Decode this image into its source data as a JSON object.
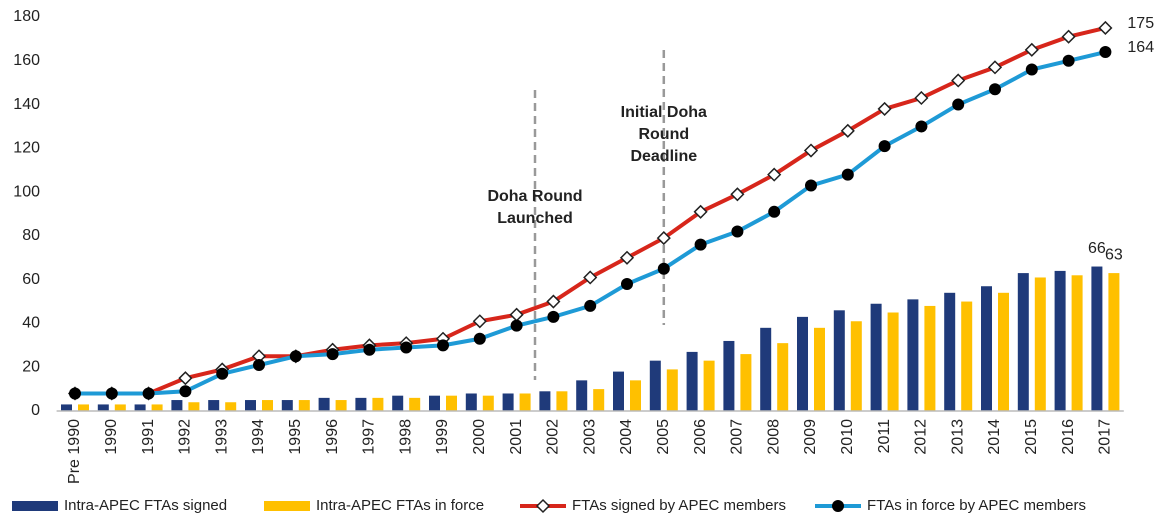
{
  "chart_data": {
    "type": "combo",
    "categories": [
      "Pre 1990",
      "1990",
      "1991",
      "1992",
      "1993",
      "1994",
      "1995",
      "1996",
      "1997",
      "1998",
      "1999",
      "2000",
      "2001",
      "2002",
      "2003",
      "2004",
      "2005",
      "2006",
      "2007",
      "2008",
      "2009",
      "2010",
      "2011",
      "2012",
      "2013",
      "2014",
      "2015",
      "2016",
      "2017"
    ],
    "series": [
      {
        "name": "Intra-APEC FTAs signed",
        "type": "bar",
        "color": "#1f3a7a",
        "values": [
          3,
          3,
          3,
          5,
          5,
          5,
          5,
          6,
          6,
          7,
          7,
          8,
          8,
          9,
          14,
          18,
          23,
          27,
          32,
          38,
          43,
          46,
          49,
          51,
          54,
          57,
          63,
          64,
          66
        ]
      },
      {
        "name": "Intra-APEC FTAs in force",
        "type": "bar",
        "color": "#ffc000",
        "values": [
          3,
          3,
          3,
          4,
          4,
          5,
          5,
          5,
          6,
          6,
          7,
          7,
          8,
          9,
          10,
          14,
          19,
          23,
          26,
          31,
          38,
          41,
          45,
          48,
          50,
          54,
          61,
          62,
          63
        ]
      },
      {
        "name": "FTAs signed by APEC members",
        "type": "line",
        "marker": "diamond",
        "color": "#d7261b",
        "values": [
          8,
          8,
          8,
          15,
          19,
          25,
          25,
          28,
          30,
          31,
          33,
          41,
          44,
          50,
          61,
          70,
          79,
          91,
          99,
          108,
          119,
          128,
          138,
          143,
          151,
          157,
          165,
          171,
          175
        ]
      },
      {
        "name": "FTAs in force by APEC members",
        "type": "line",
        "marker": "circle",
        "color": "#1e9ad6",
        "values": [
          8,
          8,
          8,
          9,
          17,
          21,
          25,
          26,
          28,
          29,
          30,
          33,
          39,
          43,
          48,
          58,
          65,
          76,
          82,
          91,
          103,
          108,
          121,
          130,
          140,
          147,
          156,
          160,
          164
        ]
      }
    ],
    "annotations": [
      {
        "lines": [
          "Doha Round",
          "Launched"
        ]
      },
      {
        "lines": [
          "Initial Doha",
          "Round",
          "Deadline"
        ]
      }
    ],
    "ylim": [
      0,
      180
    ],
    "yticks": [
      0,
      20,
      40,
      60,
      80,
      100,
      120,
      140,
      160,
      180
    ],
    "grid": false,
    "legend": "bottom"
  }
}
